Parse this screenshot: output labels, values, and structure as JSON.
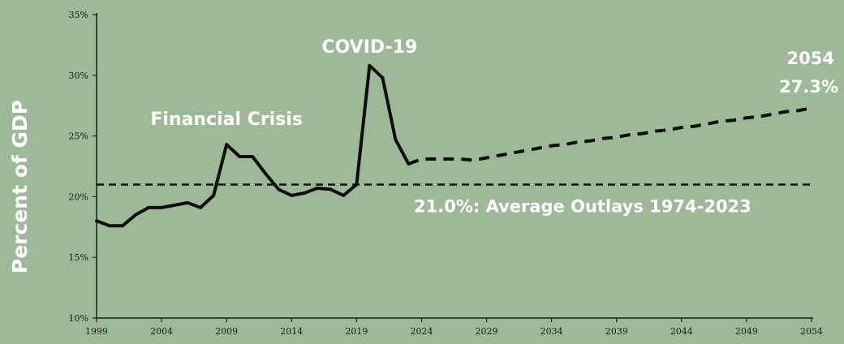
{
  "chart_data": {
    "type": "line",
    "title": "",
    "xlabel": "",
    "ylabel": "Percent of GDP",
    "xlim": [
      1999,
      2054
    ],
    "ylim": [
      10,
      35
    ],
    "x_ticks": [
      "1999",
      "2004",
      "2009",
      "2014",
      "2019",
      "2024",
      "2029",
      "2034",
      "2039",
      "2044",
      "2049",
      "2054"
    ],
    "y_ticks": [
      "10%",
      "15%",
      "20%",
      "25%",
      "30%",
      "35%"
    ],
    "grid": false,
    "series": [
      {
        "style": "solid",
        "x": [
          1999,
          2000,
          2001,
          2002,
          2003,
          2004,
          2005,
          2006,
          2007,
          2008,
          2009,
          2010,
          2011,
          2012,
          2013,
          2014,
          2015,
          2016,
          2017,
          2018,
          2019,
          2020,
          2021,
          2022,
          2023
        ],
        "values": [
          18.0,
          17.6,
          17.6,
          18.5,
          19.1,
          19.1,
          19.3,
          19.5,
          19.1,
          20.1,
          24.3,
          23.3,
          23.3,
          21.9,
          20.6,
          20.1,
          20.3,
          20.7,
          20.6,
          20.1,
          21.0,
          30.8,
          29.8,
          24.7,
          22.7
        ]
      },
      {
        "style": "dashed",
        "x": [
          2023,
          2024,
          2025,
          2026,
          2027,
          2028,
          2029,
          2030,
          2031,
          2032,
          2033,
          2034,
          2035,
          2036,
          2037,
          2038,
          2039,
          2040,
          2041,
          2042,
          2043,
          2044,
          2045,
          2046,
          2047,
          2048,
          2049,
          2050,
          2051,
          2052,
          2053,
          2054
        ],
        "values": [
          22.7,
          23.1,
          23.1,
          23.1,
          23.1,
          23.0,
          23.2,
          23.4,
          23.6,
          23.8,
          24.0,
          24.2,
          24.3,
          24.5,
          24.6,
          24.8,
          24.9,
          25.1,
          25.2,
          25.4,
          25.5,
          25.7,
          25.8,
          26.0,
          26.2,
          26.3,
          26.5,
          26.6,
          26.8,
          27.0,
          27.1,
          27.3
        ]
      }
    ],
    "reference_line": {
      "value": 21.0,
      "style": "dashed",
      "label": "21.0%: Average Outlays 1974-2023"
    },
    "annotations": [
      {
        "text": "Financial Crisis",
        "x": 2009,
        "y": 24.3
      },
      {
        "text": "COVID-19",
        "x": 2020,
        "y": 30.8
      },
      {
        "text": "2054",
        "x": 2054,
        "y": 27.3
      },
      {
        "text": "27.3%",
        "x": 2054,
        "y": 27.3
      }
    ]
  }
}
